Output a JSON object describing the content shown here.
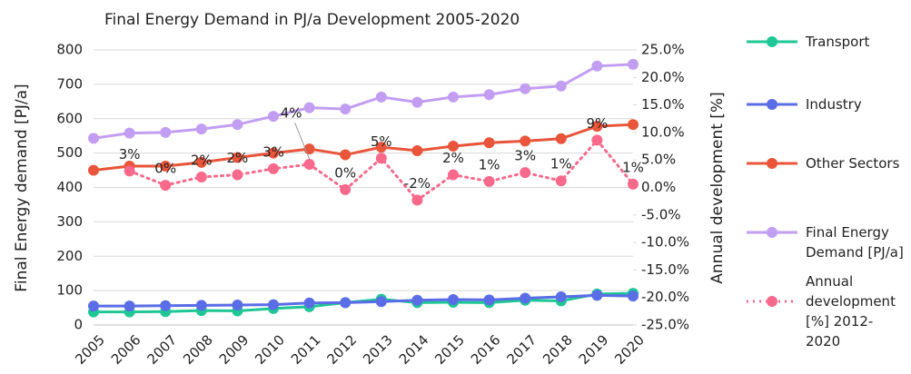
{
  "chart_data": {
    "type": "line",
    "title": "Final Energy Demand in PJ/a Development 2005-2020",
    "y_label": "Final Energy demand [PJ/a]",
    "y2_label": "Annual development [%]",
    "categories": [
      "2005",
      "2006",
      "2007",
      "2008",
      "2009",
      "2010",
      "2011",
      "2012",
      "2013",
      "2014",
      "2015",
      "2016",
      "2017",
      "2018",
      "2019",
      "2020"
    ],
    "ylim": [
      0,
      800
    ],
    "yticks": [
      0,
      100,
      200,
      300,
      400,
      500,
      600,
      700,
      800
    ],
    "y2lim": [
      -25,
      25
    ],
    "y2ticks": [
      {
        "value": 25,
        "label": "25.0%"
      },
      {
        "value": 20,
        "label": "20.0%"
      },
      {
        "value": 15,
        "label": "15.0%"
      },
      {
        "value": 10,
        "label": "10.0%"
      },
      {
        "value": 5,
        "label": "5.0%"
      },
      {
        "value": 0,
        "label": "0.0%"
      },
      {
        "value": -5,
        "label": "-5.0%"
      },
      {
        "value": -10,
        "label": "-10.0%"
      },
      {
        "value": -15,
        "label": "-15.0%"
      },
      {
        "value": -20,
        "label": "-20.0%"
      },
      {
        "value": -25,
        "label": "-25.0%"
      }
    ],
    "grid": true,
    "legend": "right",
    "series": [
      {
        "name": "Transport",
        "color": "#1ec795",
        "values": [
          38,
          38,
          39,
          42,
          41,
          48,
          53,
          65,
          75,
          65,
          66,
          65,
          72,
          70,
          90,
          92
        ]
      },
      {
        "name": "Industry",
        "color": "#5b6de6",
        "values": [
          55,
          55,
          56,
          57,
          58,
          59,
          64,
          65,
          68,
          72,
          74,
          73,
          78,
          82,
          86,
          84
        ]
      },
      {
        "name": "Other Sectors",
        "color": "#e8553a",
        "values": [
          450,
          462,
          462,
          473,
          487,
          500,
          512,
          495,
          517,
          507,
          520,
          530,
          535,
          542,
          578,
          583
        ]
      },
      {
        "name": "Final Energy Demand [PJ/a]",
        "color": "#c29ef2",
        "values": [
          543,
          558,
          560,
          570,
          583,
          607,
          632,
          628,
          663,
          648,
          663,
          670,
          687,
          695,
          753,
          758
        ]
      },
      {
        "name": "Annual development [%] 2012-2020",
        "color": "#f8698c",
        "axis": "y2",
        "dashed": true,
        "values": [
          null,
          3.0,
          0.4,
          1.9,
          2.3,
          3.4,
          4.2,
          -0.4,
          5.3,
          -2.3,
          2.3,
          1.1,
          2.7,
          1.2,
          8.6,
          0.6
        ],
        "value_labels": [
          null,
          "3%",
          "0%",
          "2%",
          "2%",
          "3%",
          "4%",
          "0%",
          "5%",
          "-2%",
          "2%",
          "1%",
          "3%",
          "1%",
          "9%",
          "1%"
        ]
      }
    ]
  }
}
